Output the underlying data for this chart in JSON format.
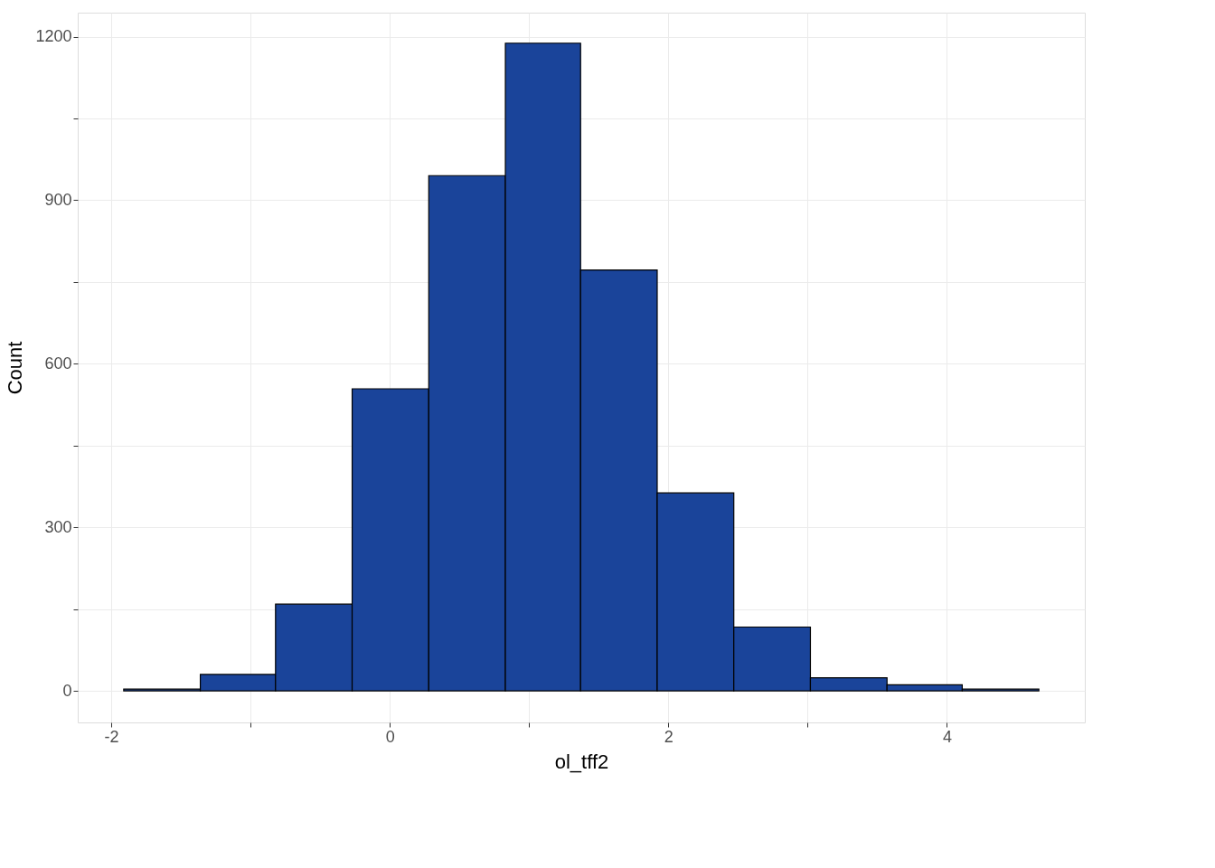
{
  "chart_data": {
    "type": "histogram",
    "xlabel": "ol_tff2",
    "ylabel": "Count",
    "color": "#1a449a",
    "bins": [
      -1.91,
      -1.36,
      -0.82,
      -0.27,
      0.28,
      0.83,
      1.37,
      1.92,
      2.47,
      3.02,
      3.57,
      4.11,
      4.66
    ],
    "values": [
      3,
      30,
      159,
      554,
      945,
      1188,
      772,
      363,
      117,
      24,
      11,
      3
    ],
    "xlim": [
      -2.24,
      4.99
    ],
    "ylim": [
      -58,
      1244
    ],
    "xticks": [
      -2,
      {
        "value": -1,
        "label": null
      },
      0,
      {
        "value": 1,
        "label": null
      },
      2,
      {
        "value": 3,
        "label": null
      },
      4
    ],
    "yticks": [
      0,
      {
        "value": 150,
        "label": null
      },
      300,
      {
        "value": 450,
        "label": null
      },
      600,
      {
        "value": 750,
        "label": null
      },
      900,
      {
        "value": 1050,
        "label": null
      },
      1200
    ],
    "grid": true
  }
}
